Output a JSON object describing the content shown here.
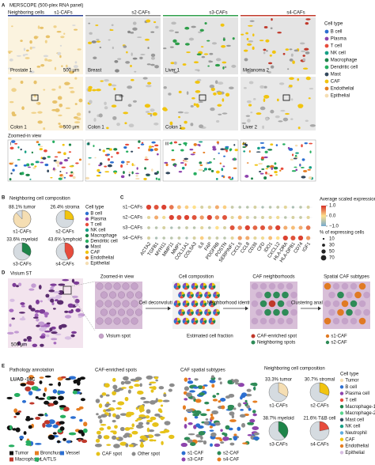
{
  "panel_a": {
    "letter": "A",
    "title": "MERSCOPE (500-plex RNA panel)",
    "neighboring_label": "Neighboring cells",
    "columns": [
      "s1-CAFs",
      "s2-CAFs",
      "s3-CAFs",
      "s4-CAFs"
    ],
    "top_samples": [
      "Prostate 1",
      "Breast",
      "Liver 1",
      "Melanoma 2"
    ],
    "bottom_samples": [
      "Colon 1",
      "Colon 1",
      "Colon 1",
      "Liver 2"
    ],
    "scale_bar": "500 μm",
    "zoom_label": "Zoomed-in view",
    "roman": [
      "i",
      "ii",
      "iii",
      "iv"
    ],
    "legend_title": "Cell type",
    "legend": [
      {
        "name": "B cell",
        "color": "#2c6fd1"
      },
      {
        "name": "Plasma",
        "color": "#8e44ad"
      },
      {
        "name": "T cell",
        "color": "#e74c3c"
      },
      {
        "name": "NK cell",
        "color": "#16a085"
      },
      {
        "name": "Macrophage",
        "color": "#1e8449"
      },
      {
        "name": "Dendritic cell",
        "color": "#27ae60"
      },
      {
        "name": "Mast",
        "color": "#34495e"
      },
      {
        "name": "CAF",
        "color": "#f1c40f"
      },
      {
        "name": "Endothelial",
        "color": "#e67e22"
      },
      {
        "name": "Epithelial",
        "color": "#f5deb3"
      }
    ]
  },
  "panel_b": {
    "letter": "B",
    "title": "Neighboring cell composition",
    "pies": [
      {
        "name": "s1-CAFs",
        "value": 88.1,
        "label": "88.1% tumor",
        "color": "#f5deb3"
      },
      {
        "name": "s2-CAFs",
        "value": 26.4,
        "label": "26.4% stroma",
        "color": "#f1c40f"
      },
      {
        "name": "s3-CAFs",
        "value": 33.6,
        "label": "33.6% myeloid",
        "color": "#1e8449"
      },
      {
        "name": "s4-CAFs",
        "value": 43.6,
        "label": "43.6% lymphoid",
        "color": "#e74c3c"
      }
    ],
    "legend_title": "Cell type",
    "legend": [
      {
        "name": "B cell",
        "color": "#2c6fd1"
      },
      {
        "name": "Plasma",
        "color": "#8e44ad"
      },
      {
        "name": "T cell",
        "color": "#e74c3c"
      },
      {
        "name": "NK cell",
        "color": "#16a085"
      },
      {
        "name": "Macrophage",
        "color": "#1e8449"
      },
      {
        "name": "Dendritic cell",
        "color": "#27ae60"
      },
      {
        "name": "Mast",
        "color": "#34495e"
      },
      {
        "name": "CAF",
        "color": "#f1c40f"
      },
      {
        "name": "Endothelial",
        "color": "#e67e22"
      },
      {
        "name": "Epithelial",
        "color": "#f5deb3"
      }
    ]
  },
  "panel_c": {
    "letter": "C",
    "rows": [
      "s1−CAFs",
      "s2−CAFs",
      "s3−CAFs",
      "s4−CAFs"
    ],
    "genes": [
      "ACTA2",
      "TGFB1",
      "MYH11",
      "MMP11",
      "MMP1",
      "COL11A1",
      "COL5A3",
      "IL6",
      "FAP",
      "PDGFRB",
      "POSTN",
      "SERPINF1",
      "CXCL5",
      "CCL8",
      "CD36",
      "CFD",
      "IDO1",
      "CXCL12",
      "HLA-DRA",
      "HLA-DPB1",
      "CD74",
      "IGF1"
    ],
    "scaled": [
      [
        0.9,
        0.8,
        0.9,
        0.6,
        0.2,
        0.1,
        0.0,
        -0.3,
        -0.2,
        0.3,
        0.1,
        -0.4,
        -0.5,
        -0.5,
        -0.3,
        -0.6,
        -0.5,
        -0.4,
        -0.2,
        -0.6,
        -0.5,
        -0.3
      ],
      [
        -0.2,
        0.3,
        -0.1,
        0.9,
        0.8,
        0.9,
        0.8,
        0.4,
        0.9,
        0.5,
        0.8,
        -0.2,
        0.2,
        -0.3,
        -0.4,
        -0.3,
        -0.2,
        -0.1,
        -0.5,
        -0.3,
        -0.4,
        -0.2
      ],
      [
        -0.4,
        -0.5,
        -0.3,
        -0.6,
        -0.5,
        -0.4,
        -0.5,
        -0.2,
        -0.5,
        0.0,
        -0.3,
        0.8,
        0.5,
        0.9,
        0.7,
        0.8,
        0.6,
        0.9,
        0.3,
        0.2,
        0.3,
        0.6
      ],
      [
        -0.3,
        -0.6,
        -0.5,
        -0.5,
        -0.4,
        -0.6,
        -0.3,
        0.1,
        -0.3,
        -0.4,
        -0.5,
        -0.2,
        0.4,
        0.3,
        -0.2,
        -0.1,
        0.2,
        0.0,
        0.9,
        0.8,
        0.9,
        0.4
      ]
    ],
    "color_title": "Average scaled expression",
    "color_ticks": [
      {
        "value": 1,
        "label": "1.0"
      },
      {
        "value": 0,
        "label": "0.0"
      },
      {
        "value": -1,
        "label": "−1.0"
      }
    ],
    "size_title": "% of expressing cells",
    "size_ticks": [
      10,
      30,
      50,
      70
    ]
  },
  "panel_d": {
    "letter": "D",
    "title": "Visium ST",
    "scale_bar": "500 μm",
    "zoom_label": "Zoomed-in view",
    "spot_label": "Visium spot",
    "step1": "Cell deconvolution",
    "composition_label": "Cell composition",
    "fraction_label": "Estimated cell fraction",
    "step2": "Neighborhood identification",
    "neighborhood_label": "CAF neighborhoods",
    "enriched_label": "CAF-enriched spot",
    "neighbor_label": "Neighboring spots",
    "step3": "Clustering analysis",
    "subtypes_label": "Spatial CAF subtypes",
    "subtype_legend": [
      {
        "name": "s1-CAF",
        "color": "#e07a24"
      },
      {
        "name": "s2-CAF",
        "color": "#2e8b57"
      }
    ]
  },
  "panel_e": {
    "letter": "E",
    "pathology_label": "Pathology annotation",
    "sample": "LUAD -14C",
    "pathology_legend": [
      {
        "name": "Tumor",
        "color": "#111111"
      },
      {
        "name": "Bronchus",
        "color": "#e67e22"
      },
      {
        "name": "Vessel",
        "color": "#2c6fd1"
      },
      {
        "name": "Macrophage",
        "color": "#c0392b"
      },
      {
        "name": "LA/TLS",
        "color": "#27ae60"
      }
    ],
    "enriched_label": "CAF-enriched spots",
    "spot_legend": [
      {
        "name": "CAF spot",
        "color": "#e6c21a"
      },
      {
        "name": "Other spot",
        "color": "#8c8c8c"
      }
    ],
    "subtypes_label": "CAF spatial subtypes",
    "subtype_legend": [
      {
        "name": "s1-CAF",
        "color": "#2c6fd1"
      },
      {
        "name": "s2-CAF",
        "color": "#2e8b57"
      },
      {
        "name": "s3-CAF",
        "color": "#8e44ad"
      },
      {
        "name": "s4-CAF",
        "color": "#e67e22"
      }
    ],
    "composition_label": "Neighboring cell composition",
    "pies": [
      {
        "name": "s1-CAFs",
        "value": 33.3,
        "label": "33.3% tumor",
        "color": "#f5deb3"
      },
      {
        "name": "s2-CAFs",
        "value": 30.7,
        "label": "30.7% stromal",
        "color": "#f1c40f"
      },
      {
        "name": "s3-CAFs",
        "value": 38.7,
        "label": "38.7% myeloid",
        "color": "#1e8449"
      },
      {
        "name": "s4-CAFs",
        "value": 21.6,
        "label": "21.6% T&B cell",
        "color": "#e74c3c"
      }
    ],
    "legend_title": "Cell type",
    "legend": [
      {
        "name": "Tumor",
        "color": "#f5deb3"
      },
      {
        "name": "B cell",
        "color": "#2c6fd1"
      },
      {
        "name": "Plasma cell",
        "color": "#8e44ad"
      },
      {
        "name": "T cell",
        "color": "#e74c3c"
      },
      {
        "name": "Macrophage-1",
        "color": "#1e8449"
      },
      {
        "name": "Macrophage-2",
        "color": "#58d68d"
      },
      {
        "name": "Mast cell",
        "color": "#34495e"
      },
      {
        "name": "NK cell",
        "color": "#16a085"
      },
      {
        "name": "Neutrophil",
        "color": "#5dade2"
      },
      {
        "name": "CAF",
        "color": "#f1c40f"
      },
      {
        "name": "Endothelial",
        "color": "#e67e22"
      },
      {
        "name": "Epithelial",
        "color": "#d7bde2"
      }
    ]
  }
}
